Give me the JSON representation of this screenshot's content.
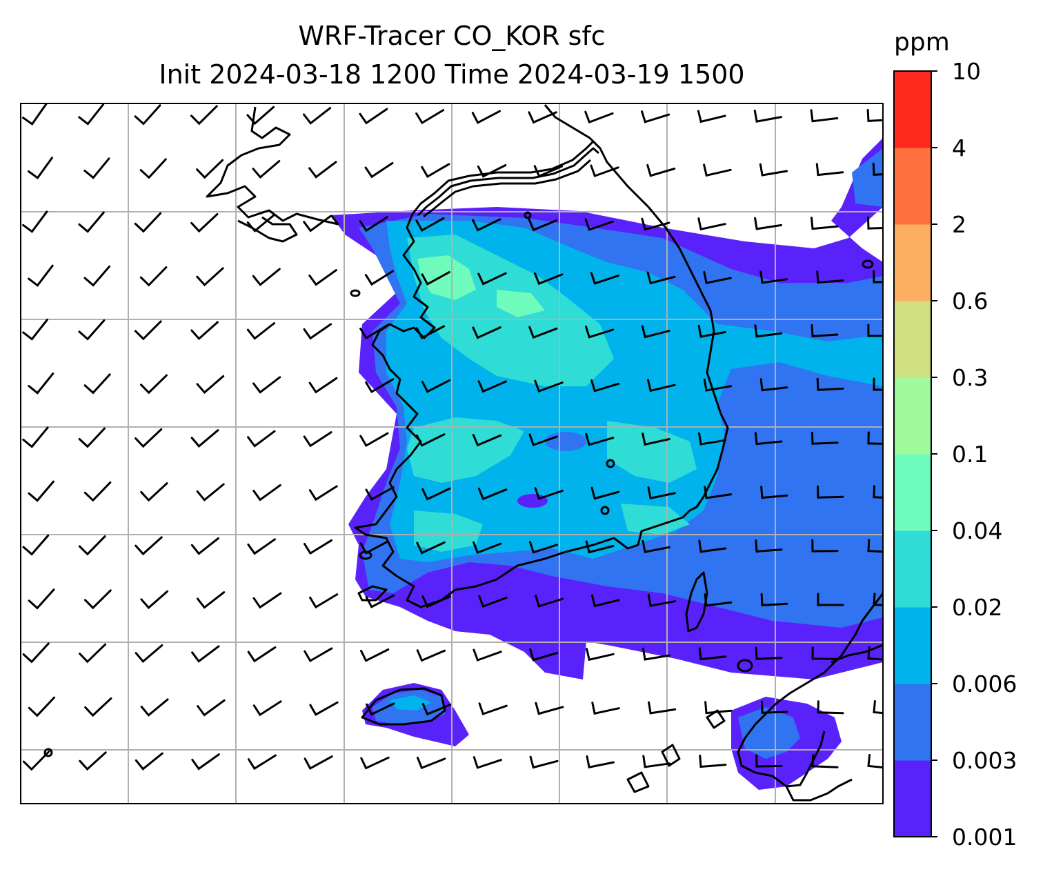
{
  "title": {
    "line1": "WRF-Tracer CO_KOR sfc",
    "line2": "Init 2024-03-18 1200 Time 2024-03-19 1500"
  },
  "colorbar": {
    "unit": "ppm",
    "ticks": [
      "0.001",
      "0.003",
      "0.006",
      "0.02",
      "0.04",
      "0.1",
      "0.3",
      "0.6",
      "2",
      "4",
      "10"
    ],
    "colors": [
      "#5a22fb",
      "#3174f1",
      "#01b3ec",
      "#2fdcd6",
      "#6ffbbb",
      "#9ffa9b",
      "#d0e081",
      "#fdaf61",
      "#fe703e",
      "#fe2a1b"
    ]
  },
  "map": {
    "gridline_color": "#b0b0b0",
    "coastline_color": "#000000",
    "plume_levels": [
      "0.001-0.003",
      "0.003-0.006",
      "0.006-0.02",
      "0.02-0.04",
      "0.04-0.1"
    ]
  }
}
